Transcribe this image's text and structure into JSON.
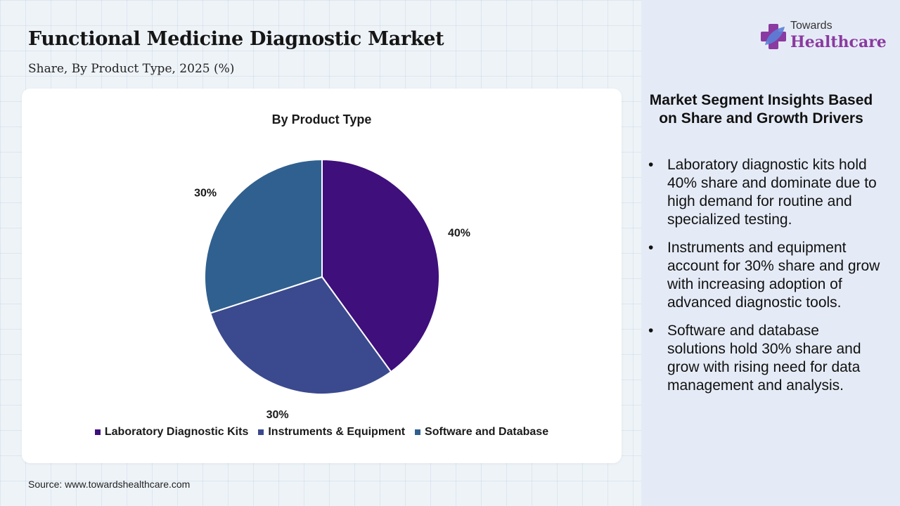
{
  "header": {
    "title": "Functional Medicine Diagnostic Market",
    "subtitle": "Share, By Product Type, 2025 (%)"
  },
  "chart_data": {
    "type": "pie",
    "title": "By Product Type",
    "categories": [
      "Laboratory Diagnostic Kits",
      "Instruments & Equipment",
      "Software and Database"
    ],
    "values": [
      40,
      30,
      30
    ],
    "labels": [
      "40%",
      "30%",
      "30%"
    ],
    "colors": [
      "#3f0f7c",
      "#3b4a8e",
      "#30608f"
    ],
    "legend_position": "bottom"
  },
  "source": "Source: www.towardshealthcare.com",
  "logo": {
    "top_text": "Towards",
    "main_text": "Healthcare",
    "icon": "cross-leaf-icon"
  },
  "insights": {
    "heading": "Market Segment Insights Based on Share and Growth Drivers",
    "bullet_char": "•",
    "items": [
      "Laboratory diagnostic kits hold 40% share and dominate due to high demand for routine and specialized testing.",
      "Instruments and equipment account for 30% share and grow with increasing adoption of advanced diagnostic tools.",
      "Software and database solutions hold 30% share and grow with rising need for data management and analysis."
    ]
  }
}
